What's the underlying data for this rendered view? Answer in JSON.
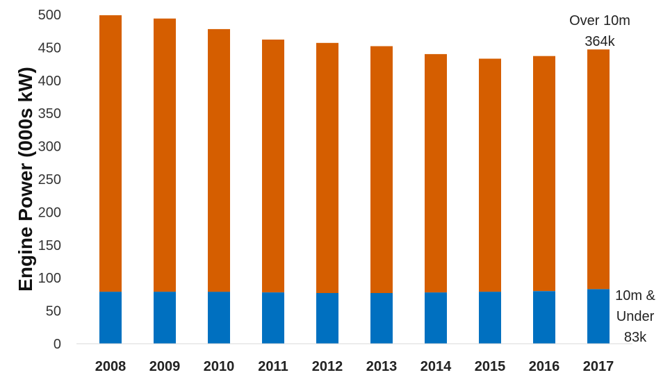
{
  "chart_data": {
    "type": "bar",
    "stacked": true,
    "title": "",
    "xlabel": "",
    "ylabel": "Engine Power (000s kW)",
    "ylim": [
      0,
      500
    ],
    "yticks": [
      0,
      50,
      100,
      150,
      200,
      250,
      300,
      350,
      400,
      450,
      500
    ],
    "grid": false,
    "legend": "none",
    "categories": [
      "2008",
      "2009",
      "2010",
      "2011",
      "2012",
      "2013",
      "2014",
      "2015",
      "2016",
      "2017"
    ],
    "series": [
      {
        "name": "10m & Under",
        "color": "#0070C0",
        "values": [
          79,
          79,
          79,
          78,
          77,
          77,
          78,
          79,
          80,
          83
        ]
      },
      {
        "name": "Over 10m",
        "color": "#D55E00",
        "values": [
          420,
          415,
          399,
          384,
          380,
          375,
          362,
          354,
          357,
          364
        ]
      }
    ],
    "annotations": {
      "over": {
        "lines": [
          "Over 10m",
          "364k"
        ]
      },
      "under": {
        "lines": [
          "10m &",
          "Under",
          "83k"
        ]
      }
    }
  }
}
